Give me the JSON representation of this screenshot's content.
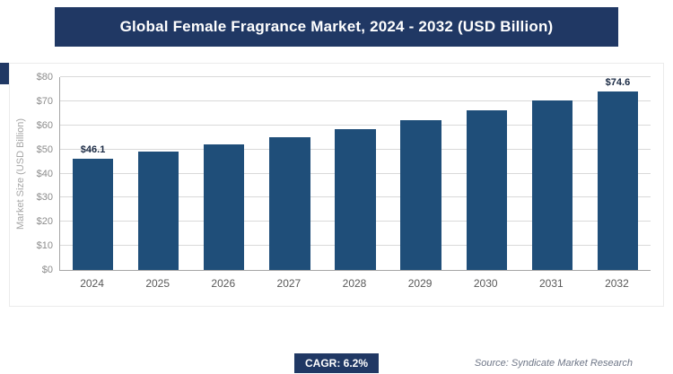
{
  "header": {
    "title": "Global Female Fragrance Market, 2024 - 2032 (USD Billion)"
  },
  "chart_data": {
    "type": "bar",
    "title": "Global Female Fragrance Market, 2024 - 2032 (USD Billion)",
    "categories": [
      "2024",
      "2025",
      "2026",
      "2027",
      "2028",
      "2029",
      "2030",
      "2031",
      "2032"
    ],
    "values": [
      46.1,
      49.0,
      52.0,
      55.2,
      58.6,
      62.2,
      66.1,
      70.2,
      74.6
    ],
    "bar_labels": {
      "0": "$46.1",
      "8": "$74.6"
    },
    "xlabel": "",
    "ylabel": "Market Size (USD Billion)",
    "ylim": [
      0,
      80
    ],
    "ytick_step": 10,
    "ytick_labels": [
      "$0",
      "$10",
      "$20",
      "$30",
      "$40",
      "$50",
      "$60",
      "$70",
      "$80"
    ],
    "grid": true,
    "legend": false,
    "bar_color": "#1F4E79"
  },
  "footer": {
    "cagr_badge": "CAGR: 6.2%",
    "source": "Source: Syndicate Market Research"
  },
  "colors": {
    "banner_bg": "#203864",
    "badge_bg": "#203864",
    "bar": "#1F4E79"
  }
}
